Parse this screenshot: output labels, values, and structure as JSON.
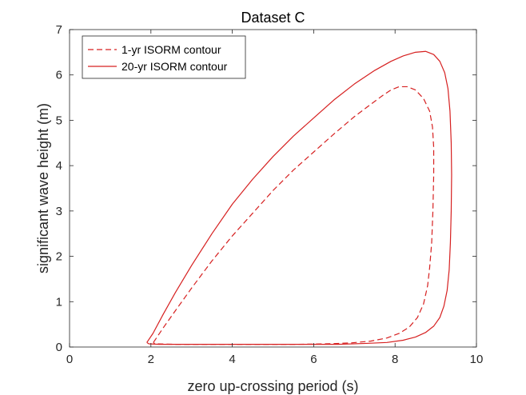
{
  "chart_data": {
    "type": "line",
    "title": "Dataset C",
    "xlabel": "zero up-crossing period (s)",
    "ylabel": "significant wave height (m)",
    "xlim": [
      0,
      10
    ],
    "ylim": [
      0,
      7
    ],
    "xticks": [
      0,
      2,
      4,
      6,
      8,
      10
    ],
    "yticks": [
      0,
      1,
      2,
      3,
      4,
      5,
      6,
      7
    ],
    "grid": false,
    "legend_position": "top-left",
    "line_color": "#d62020",
    "series": [
      {
        "name": "1-yr ISORM contour",
        "style": "dashed",
        "x": [
          2.06,
          2.3,
          2.6,
          3.0,
          3.5,
          4.0,
          4.5,
          5.0,
          5.5,
          6.0,
          6.5,
          7.0,
          7.4,
          7.7,
          7.9,
          8.1,
          8.3,
          8.5,
          8.7,
          8.85,
          8.92,
          8.95,
          8.95,
          8.93,
          8.9,
          8.85,
          8.8,
          8.7,
          8.55,
          8.35,
          8.1,
          7.8,
          7.4,
          6.9,
          6.3,
          5.6,
          4.5,
          3.5,
          2.6,
          2.1,
          2.06
        ],
        "y": [
          0.1,
          0.42,
          0.8,
          1.3,
          1.9,
          2.45,
          2.95,
          3.45,
          3.9,
          4.3,
          4.7,
          5.08,
          5.35,
          5.55,
          5.67,
          5.74,
          5.74,
          5.67,
          5.48,
          5.2,
          4.85,
          4.4,
          3.8,
          3.0,
          2.3,
          1.75,
          1.35,
          0.95,
          0.65,
          0.44,
          0.3,
          0.2,
          0.13,
          0.09,
          0.07,
          0.06,
          0.06,
          0.06,
          0.06,
          0.07,
          0.1
        ]
      },
      {
        "name": "20-yr ISORM contour",
        "style": "solid",
        "x": [
          1.9,
          2.05,
          2.3,
          2.6,
          3.0,
          3.5,
          4.0,
          4.5,
          5.0,
          5.5,
          6.0,
          6.5,
          7.0,
          7.5,
          7.9,
          8.2,
          8.5,
          8.75,
          8.95,
          9.1,
          9.22,
          9.3,
          9.35,
          9.38,
          9.39,
          9.38,
          9.36,
          9.33,
          9.28,
          9.2,
          9.1,
          8.95,
          8.75,
          8.5,
          8.2,
          7.8,
          7.3,
          6.6,
          5.6,
          4.2,
          3.0,
          2.2,
          1.95,
          1.9
        ],
        "y": [
          0.1,
          0.3,
          0.72,
          1.2,
          1.8,
          2.5,
          3.15,
          3.7,
          4.2,
          4.65,
          5.05,
          5.45,
          5.8,
          6.1,
          6.3,
          6.42,
          6.5,
          6.52,
          6.45,
          6.3,
          6.05,
          5.7,
          5.2,
          4.5,
          3.8,
          3.0,
          2.3,
          1.7,
          1.25,
          0.9,
          0.65,
          0.46,
          0.32,
          0.22,
          0.15,
          0.1,
          0.08,
          0.06,
          0.06,
          0.06,
          0.06,
          0.06,
          0.07,
          0.1
        ]
      }
    ]
  }
}
